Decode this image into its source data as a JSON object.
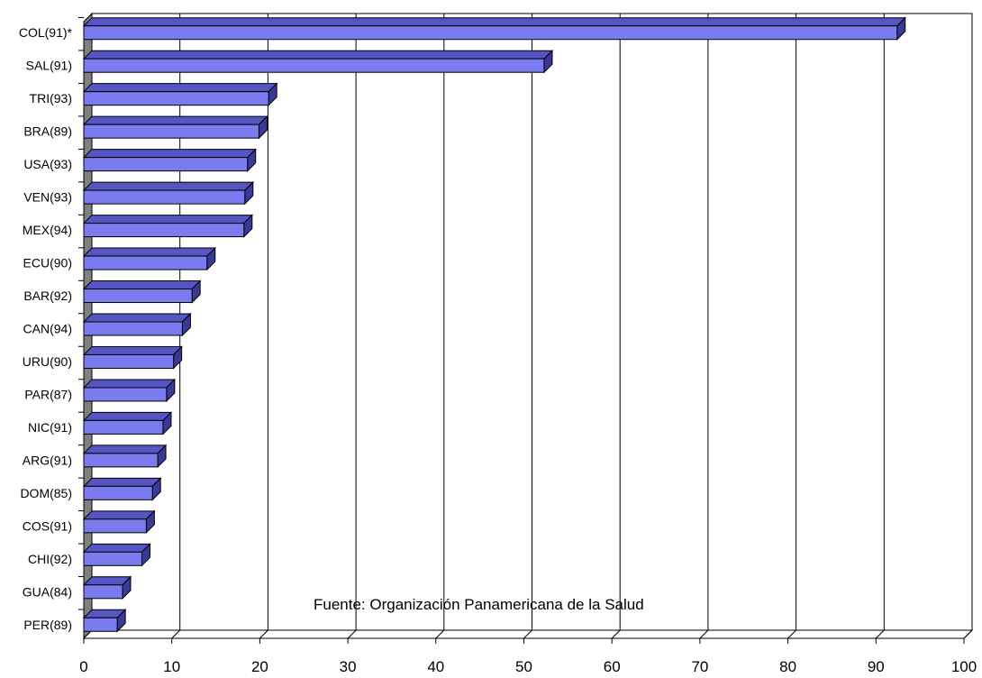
{
  "chart_data": {
    "type": "bar",
    "orientation": "horizontal",
    "style": "3d",
    "title": "",
    "xlabel": "",
    "ylabel": "",
    "categories": [
      "COL(91)*",
      "SAL(91)",
      "TRI(93)",
      "BRA(89)",
      "USA(93)",
      "VEN(93)",
      "MEX(94)",
      "ECU(90)",
      "BAR(92)",
      "CAN(94)",
      "URU(90)",
      "PAR(87)",
      "NIC(91)",
      "ARG(91)",
      "DOM(85)",
      "COS(91)",
      "CHI(92)",
      "GUA(84)",
      "PER(89)"
    ],
    "values": [
      92.4,
      52.3,
      21.0,
      19.9,
      18.6,
      18.3,
      18.2,
      14.0,
      12.3,
      11.2,
      10.2,
      9.4,
      9.0,
      8.4,
      7.8,
      7.1,
      6.6,
      4.4,
      3.8
    ],
    "xlim": [
      0,
      100
    ],
    "xticks": [
      0,
      10,
      20,
      30,
      40,
      50,
      60,
      70,
      80,
      90,
      100
    ],
    "grid": "vertical",
    "colors": {
      "bar_front": "#7b7bf0",
      "bar_top": "#5555c4",
      "bar_side": "#3a3a96",
      "wall": "#808080",
      "grid": "#000000"
    },
    "annotation": "Fuente: Organización Panamericana de la Salud"
  }
}
